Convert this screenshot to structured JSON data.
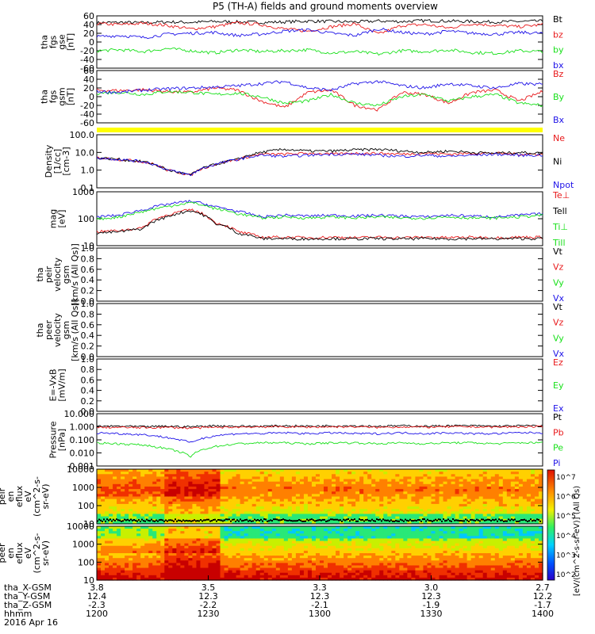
{
  "title": "P5 (TH-A) fields and ground moments overview",
  "colors": {
    "black": "#000000",
    "red": "#e8191b",
    "green": "#18e01a",
    "blue": "#1e12e8",
    "yellow": "#ffff00"
  },
  "chart_data": [
    {
      "type": "line",
      "panel": "fgs_gse",
      "ylabel": [
        "tha",
        "fgs",
        "gse",
        "[nT]"
      ],
      "yticks": [
        "60",
        "40",
        "20",
        "0",
        "-20",
        "-40",
        "-60"
      ],
      "ylim": [
        -60,
        60
      ],
      "series": [
        {
          "name": "Bt",
          "color": "black",
          "values": [
            44,
            45,
            44,
            46,
            45,
            47,
            46,
            45,
            46,
            48,
            47,
            46,
            48,
            47,
            49,
            48,
            47,
            46,
            47,
            48
          ]
        },
        {
          "name": "bz",
          "color": "red",
          "values": [
            42,
            40,
            43,
            38,
            30,
            35,
            44,
            40,
            30,
            25,
            35,
            42,
            18,
            38,
            40,
            32,
            42,
            38,
            35,
            40
          ]
        },
        {
          "name": "by",
          "color": "green",
          "values": [
            -20,
            -18,
            -22,
            -15,
            -20,
            -25,
            -18,
            -22,
            -20,
            -18,
            -25,
            -22,
            -28,
            -20,
            -22,
            -18,
            -24,
            -26,
            -20,
            -22
          ]
        },
        {
          "name": "bx",
          "color": "blue",
          "values": [
            12,
            15,
            10,
            18,
            20,
            22,
            15,
            18,
            25,
            28,
            20,
            15,
            30,
            22,
            18,
            25,
            20,
            18,
            22,
            20
          ]
        }
      ],
      "legend": [
        "Bt",
        "bz",
        "by",
        "bx"
      ]
    },
    {
      "type": "line",
      "panel": "fgs_gsm",
      "ylabel": [
        "tha",
        "fgs",
        "gsm",
        "[nT]"
      ],
      "yticks": [
        "60",
        "40",
        "20",
        "0",
        "-20",
        "-40",
        "-60"
      ],
      "ylim": [
        -60,
        60
      ],
      "series": [
        {
          "name": "Bz",
          "color": "red",
          "values": [
            15,
            14,
            16,
            12,
            10,
            20,
            15,
            -10,
            -25,
            10,
            15,
            -20,
            -30,
            10,
            5,
            -15,
            10,
            15,
            -10,
            12
          ]
        },
        {
          "name": "By",
          "color": "green",
          "values": [
            8,
            10,
            5,
            12,
            10,
            5,
            8,
            0,
            -15,
            -10,
            5,
            -15,
            -20,
            0,
            5,
            -10,
            0,
            5,
            -15,
            -20
          ]
        },
        {
          "name": "Bx",
          "color": "blue",
          "values": [
            12,
            10,
            15,
            18,
            20,
            22,
            25,
            30,
            35,
            20,
            15,
            30,
            35,
            25,
            20,
            30,
            25,
            20,
            30,
            28
          ]
        }
      ],
      "legend": [
        "Bz",
        "By",
        "Bx"
      ]
    },
    {
      "type": "line",
      "panel": "density",
      "ylabel": [
        "Density",
        "[1/cc]",
        "[cm-3]"
      ],
      "yticks": [
        "100.0",
        "10.0",
        "1.0",
        "0.1"
      ],
      "yscale": "log",
      "ylim": [
        0.1,
        100
      ],
      "series": [
        {
          "name": "Ne",
          "color": "red",
          "values": [
            5,
            4,
            3,
            1,
            0.5,
            2,
            4,
            8,
            8,
            9,
            8,
            9,
            9,
            8,
            9,
            8,
            9,
            9,
            8,
            8
          ]
        },
        {
          "name": "Ni",
          "color": "black",
          "values": [
            5,
            4,
            3,
            1,
            0.5,
            2,
            4,
            10,
            15,
            12,
            12,
            14,
            15,
            12,
            10,
            12,
            10,
            9,
            10,
            9
          ]
        },
        {
          "name": "Npot",
          "color": "blue",
          "values": [
            5,
            4,
            3,
            1,
            0.5,
            2,
            4,
            7,
            6,
            7,
            8,
            8,
            7,
            6,
            7,
            6,
            7,
            8,
            7,
            7
          ]
        }
      ],
      "legend": [
        "Ne",
        "Ni",
        "Npot"
      ]
    },
    {
      "type": "line",
      "panel": "temperature",
      "ylabel": [
        "mag",
        "[eV]"
      ],
      "yticks": [
        "1000",
        "100",
        "10"
      ],
      "yscale": "log",
      "ylim": [
        10,
        10000
      ],
      "series": [
        {
          "name": "Te⊥",
          "color": "red",
          "values": [
            60,
            70,
            100,
            500,
            1000,
            200,
            60,
            30,
            30,
            28,
            30,
            28,
            30,
            28,
            30,
            28,
            30,
            28,
            30,
            30
          ]
        },
        {
          "name": "Tell",
          "color": "black",
          "values": [
            50,
            60,
            90,
            400,
            900,
            180,
            50,
            25,
            25,
            24,
            25,
            24,
            25,
            24,
            25,
            24,
            25,
            24,
            25,
            25
          ]
        },
        {
          "name": "Ti⊥",
          "color": "blue",
          "values": [
            400,
            500,
            1000,
            2000,
            3000,
            1500,
            800,
            400,
            500,
            450,
            500,
            450,
            500,
            450,
            400,
            500,
            450,
            400,
            500,
            600
          ]
        },
        {
          "name": "Till",
          "color": "green",
          "values": [
            300,
            400,
            800,
            1500,
            2500,
            1200,
            600,
            350,
            400,
            350,
            400,
            350,
            400,
            350,
            350,
            400,
            350,
            350,
            400,
            500
          ]
        }
      ],
      "legend": [
        "Te⊥",
        "Tell",
        "Ti⊥",
        "Till"
      ]
    },
    {
      "type": "line",
      "panel": "peir_velocity",
      "ylabel": [
        "tha",
        "peir",
        "velocity",
        "gsm",
        "[km/s (All Qs)]"
      ],
      "yticks": [
        "1.0",
        "0.8",
        "0.6",
        "0.4",
        "0.2",
        "0.0"
      ],
      "ylim": [
        0,
        1
      ],
      "series": [],
      "legend": [
        "Vt",
        "Vz",
        "Vy",
        "Vx"
      ]
    },
    {
      "type": "line",
      "panel": "peer_velocity",
      "ylabel": [
        "tha",
        "peer",
        "velocity",
        "gsm",
        "[km/s (All Qs)]"
      ],
      "yticks": [
        "1.0",
        "0.8",
        "0.6",
        "0.4",
        "0.2",
        "0.0"
      ],
      "ylim": [
        0,
        1
      ],
      "series": [],
      "legend": [
        "Vt",
        "Vz",
        "Vy",
        "Vx"
      ]
    },
    {
      "type": "line",
      "panel": "efield",
      "ylabel": [
        "E=-VxB",
        "[mV/m]"
      ],
      "yticks": [
        "1.0",
        "0.8",
        "0.6",
        "0.4",
        "0.2",
        "0.0"
      ],
      "ylim": [
        0,
        1
      ],
      "series": [],
      "legend": [
        "Ez",
        "Ey",
        "Ex"
      ]
    },
    {
      "type": "line",
      "panel": "pressure",
      "ylabel": [
        "Pressure",
        "[nPa]"
      ],
      "yticks": [
        "10.000",
        "1.000",
        "0.100",
        "0.010",
        "0.001"
      ],
      "yscale": "log",
      "ylim": [
        0.001,
        10
      ],
      "series": [
        {
          "name": "Pt",
          "color": "black",
          "values": [
            1.1,
            1.1,
            1.0,
            1.1,
            1.0,
            1.2,
            1.1,
            1.1,
            1.2,
            1.1,
            1.2,
            1.2,
            1.1,
            1.2,
            1.1,
            1.2,
            1.2,
            1.1,
            1.2,
            1.2
          ]
        },
        {
          "name": "Pb",
          "color": "red",
          "values": [
            0.9,
            0.9,
            0.85,
            0.9,
            0.8,
            0.9,
            0.95,
            1.0,
            1.0,
            0.95,
            1.0,
            1.0,
            0.9,
            1.0,
            0.95,
            1.0,
            1.0,
            0.95,
            1.0,
            1.0
          ]
        },
        {
          "name": "Pe",
          "color": "green",
          "values": [
            0.06,
            0.05,
            0.04,
            0.02,
            0.005,
            0.03,
            0.05,
            0.06,
            0.06,
            0.05,
            0.06,
            0.06,
            0.05,
            0.06,
            0.05,
            0.06,
            0.06,
            0.05,
            0.06,
            0.06
          ]
        },
        {
          "name": "Pi",
          "color": "blue",
          "values": [
            0.35,
            0.3,
            0.25,
            0.15,
            0.06,
            0.2,
            0.3,
            0.3,
            0.35,
            0.3,
            0.35,
            0.3,
            0.3,
            0.35,
            0.3,
            0.35,
            0.3,
            0.3,
            0.35,
            0.35
          ]
        }
      ],
      "legend": [
        "Pt",
        "Pb",
        "Pe",
        "Pi"
      ]
    },
    {
      "type": "heatmap",
      "panel": "peir_eflux",
      "ylabel": [
        "tha",
        "peir",
        "en",
        "eflux",
        "eV",
        "(cm^2-s-",
        "sr-eV)"
      ],
      "yticks": [
        "10000",
        "1000",
        "100",
        "10"
      ],
      "yscale": "log",
      "ylim": [
        5,
        25000
      ]
    },
    {
      "type": "heatmap",
      "panel": "peer_eflux",
      "ylabel": [
        "tha",
        "peer",
        "en",
        "eflux",
        "eV",
        "(cm^2-s-",
        "sr-eV)"
      ],
      "yticks": [
        "10000",
        "1000",
        "100",
        "10"
      ],
      "yscale": "log",
      "ylim": [
        5,
        25000
      ]
    }
  ],
  "colorbar": {
    "label": "[eV/(cm^2-s-sr-eV)] (All Qs)",
    "ticks": [
      "10^7",
      "10^6",
      "10^5",
      "10^4",
      "10^3",
      "10^2"
    ]
  },
  "xaxis": {
    "rows": [
      {
        "label": "tha_X-GSM",
        "values": [
          "3.8",
          "3.5",
          "3.3",
          "3.0",
          "2.7"
        ]
      },
      {
        "label": "tha_Y-GSM",
        "values": [
          "12.4",
          "12.3",
          "12.3",
          "12.3",
          "12.2"
        ]
      },
      {
        "label": "tha_Z-GSM",
        "values": [
          "-2.3",
          "-2.2",
          "-2.1",
          "-1.9",
          "-1.7"
        ]
      },
      {
        "label": "hhmm",
        "values": [
          "1200",
          "1230",
          "1300",
          "1330",
          "1400"
        ]
      }
    ],
    "date": "2016 Apr 16"
  }
}
